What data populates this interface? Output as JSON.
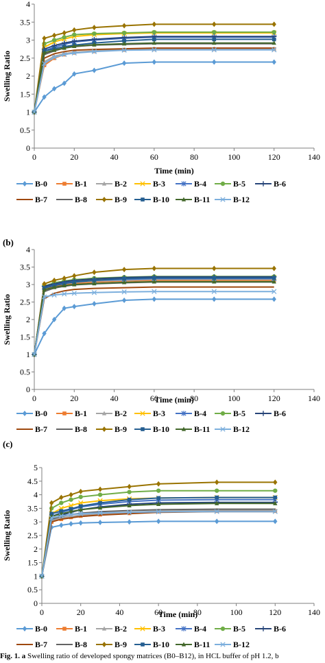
{
  "panel_labels": [
    "",
    "(b)",
    "(c)"
  ],
  "caption": {
    "prefix": "Fig. 1.",
    "letter": "a",
    "text": "Swelling ratio of developed spongy matrices (B0–B12), in HCL buffer of pH 1.2, b"
  },
  "colors": {
    "B-0": "#5b9bd5",
    "B-1": "#ed7d31",
    "B-2": "#a5a5a5",
    "B-3": "#ffc000",
    "B-4": "#4472c4",
    "B-5": "#70ad47",
    "B-6": "#264478",
    "B-7": "#9e480e",
    "B-8": "#636363",
    "B-9": "#997300",
    "B-10": "#255e91",
    "B-11": "#43682b",
    "B-12": "#7cafdd"
  },
  "markers": {
    "B-0": "diamond",
    "B-1": "square",
    "B-2": "triangle",
    "B-3": "x",
    "B-4": "star",
    "B-5": "circle",
    "B-6": "plus",
    "B-7": "dash",
    "B-8": "dash",
    "B-9": "diamond",
    "B-10": "square",
    "B-11": "triangle",
    "B-12": "x"
  },
  "chart_data": [
    {
      "type": "line",
      "panel": "a",
      "xlabel": "Time (min)",
      "ylabel": "Swelling Ratio",
      "xlim": [
        0,
        140
      ],
      "ylim": [
        0,
        4
      ],
      "xticks": [
        0,
        20,
        40,
        60,
        80,
        100,
        120,
        140
      ],
      "yticks": [
        0,
        0.5,
        1,
        1.5,
        2,
        2.5,
        3,
        3.5,
        4
      ],
      "grid": false,
      "legend_position": "bottom",
      "x": [
        0,
        5,
        10,
        15,
        20,
        30,
        45,
        60,
        90,
        120
      ],
      "series": [
        {
          "name": "B-0",
          "values": [
            1,
            1.42,
            1.65,
            1.8,
            2.06,
            2.16,
            2.36,
            2.39,
            2.39,
            2.39
          ]
        },
        {
          "name": "B-1",
          "values": [
            1,
            2.3,
            2.5,
            2.6,
            2.65,
            2.69,
            2.73,
            2.75,
            2.75,
            2.75
          ]
        },
        {
          "name": "B-2",
          "values": [
            1,
            2.4,
            2.55,
            2.62,
            2.66,
            2.7,
            2.74,
            2.76,
            2.76,
            2.76
          ]
        },
        {
          "name": "B-3",
          "values": [
            1,
            2.8,
            2.95,
            3.03,
            3.1,
            3.15,
            3.18,
            3.2,
            3.2,
            3.2
          ]
        },
        {
          "name": "B-4",
          "values": [
            1,
            2.7,
            2.8,
            2.88,
            2.95,
            3.0,
            3.05,
            3.08,
            3.08,
            3.08
          ]
        },
        {
          "name": "B-5",
          "values": [
            1,
            2.9,
            3.0,
            3.08,
            3.15,
            3.18,
            3.2,
            3.22,
            3.22,
            3.22
          ]
        },
        {
          "name": "B-6",
          "values": [
            1,
            2.75,
            2.85,
            2.92,
            2.97,
            3.02,
            3.07,
            3.1,
            3.1,
            3.1
          ]
        },
        {
          "name": "B-7",
          "values": [
            1,
            2.5,
            2.62,
            2.68,
            2.72,
            2.74,
            2.76,
            2.78,
            2.78,
            2.78
          ]
        },
        {
          "name": "B-8",
          "values": [
            1,
            2.6,
            2.7,
            2.78,
            2.82,
            2.86,
            2.88,
            2.9,
            2.9,
            2.9
          ]
        },
        {
          "name": "B-9",
          "values": [
            1,
            3.05,
            3.13,
            3.2,
            3.28,
            3.35,
            3.4,
            3.44,
            3.44,
            3.44
          ]
        },
        {
          "name": "B-10",
          "values": [
            1,
            2.7,
            2.76,
            2.82,
            2.86,
            2.92,
            2.98,
            3.02,
            3.02,
            3.02
          ]
        },
        {
          "name": "B-11",
          "values": [
            1,
            2.65,
            2.72,
            2.78,
            2.83,
            2.87,
            2.9,
            2.92,
            2.92,
            2.92
          ]
        },
        {
          "name": "B-12",
          "values": [
            1,
            2.35,
            2.52,
            2.6,
            2.64,
            2.68,
            2.72,
            2.73,
            2.73,
            2.73
          ]
        }
      ]
    },
    {
      "type": "line",
      "panel": "b",
      "xlabel": "Time (min)",
      "ylabel": "Swelling Ratio",
      "xlim": [
        0,
        140
      ],
      "ylim": [
        0,
        4
      ],
      "xticks": [
        0,
        20,
        40,
        60,
        80,
        100,
        120,
        140
      ],
      "yticks": [
        0,
        0.5,
        1,
        1.5,
        2,
        2.5,
        3,
        3.5,
        4
      ],
      "grid": false,
      "legend_position": "bottom",
      "x": [
        0,
        5,
        10,
        15,
        20,
        30,
        45,
        60,
        90,
        120
      ],
      "series": [
        {
          "name": "B-0",
          "values": [
            1,
            1.6,
            2.0,
            2.32,
            2.37,
            2.45,
            2.55,
            2.58,
            2.58,
            2.58
          ]
        },
        {
          "name": "B-1",
          "values": [
            1,
            2.85,
            2.95,
            3.0,
            3.03,
            3.07,
            3.1,
            3.12,
            3.12,
            3.12
          ]
        },
        {
          "name": "B-2",
          "values": [
            1,
            2.9,
            2.98,
            3.02,
            3.06,
            3.1,
            3.12,
            3.15,
            3.15,
            3.15
          ]
        },
        {
          "name": "B-3",
          "values": [
            1,
            2.95,
            3.02,
            3.06,
            3.1,
            3.14,
            3.18,
            3.2,
            3.2,
            3.2
          ]
        },
        {
          "name": "B-4",
          "values": [
            1,
            2.92,
            3.0,
            3.05,
            3.08,
            3.12,
            3.15,
            3.17,
            3.17,
            3.17
          ]
        },
        {
          "name": "B-5",
          "values": [
            1,
            2.95,
            3.05,
            3.1,
            3.14,
            3.18,
            3.21,
            3.23,
            3.23,
            3.23
          ]
        },
        {
          "name": "B-6",
          "values": [
            1,
            2.95,
            3.02,
            3.08,
            3.12,
            3.16,
            3.2,
            3.22,
            3.22,
            3.22
          ]
        },
        {
          "name": "B-7",
          "values": [
            1,
            2.6,
            2.75,
            2.82,
            2.86,
            2.89,
            2.91,
            2.93,
            2.93,
            2.93
          ]
        },
        {
          "name": "B-8",
          "values": [
            1,
            2.8,
            2.9,
            2.95,
            2.99,
            3.02,
            3.05,
            3.07,
            3.07,
            3.07
          ]
        },
        {
          "name": "B-9",
          "values": [
            1,
            3.02,
            3.12,
            3.18,
            3.25,
            3.35,
            3.43,
            3.46,
            3.46,
            3.46
          ]
        },
        {
          "name": "B-10",
          "values": [
            1,
            2.9,
            2.97,
            3.03,
            3.07,
            3.12,
            3.17,
            3.19,
            3.19,
            3.19
          ]
        },
        {
          "name": "B-11",
          "values": [
            1,
            2.85,
            2.92,
            2.97,
            3.0,
            3.03,
            3.06,
            3.08,
            3.08,
            3.08
          ]
        },
        {
          "name": "B-12",
          "values": [
            1,
            2.65,
            2.7,
            2.73,
            2.75,
            2.77,
            2.79,
            2.8,
            2.8,
            2.8
          ]
        }
      ]
    },
    {
      "type": "line",
      "panel": "c",
      "xlabel": "Time (min)",
      "ylabel": "Swelling Ratio",
      "xlim": [
        0,
        140
      ],
      "ylim": [
        0,
        5
      ],
      "xticks": [
        0,
        20,
        40,
        60,
        80,
        100,
        120,
        140
      ],
      "yticks": [
        0,
        0.5,
        1,
        1.5,
        2,
        2.5,
        3,
        3.5,
        4,
        4.5,
        5
      ],
      "grid": false,
      "legend_position": "bottom",
      "x": [
        0,
        5,
        10,
        15,
        20,
        30,
        45,
        60,
        90,
        120
      ],
      "series": [
        {
          "name": "B-0",
          "values": [
            1,
            2.8,
            2.88,
            2.93,
            2.96,
            2.98,
            3.0,
            3.02,
            3.02,
            3.02
          ]
        },
        {
          "name": "B-1",
          "values": [
            1,
            3.0,
            3.1,
            3.17,
            3.22,
            3.27,
            3.32,
            3.38,
            3.4,
            3.4
          ]
        },
        {
          "name": "B-2",
          "values": [
            1,
            3.05,
            3.15,
            3.2,
            3.25,
            3.3,
            3.35,
            3.4,
            3.43,
            3.43
          ]
        },
        {
          "name": "B-3",
          "values": [
            1,
            3.3,
            3.5,
            3.6,
            3.7,
            3.78,
            3.85,
            3.88,
            3.9,
            3.9
          ]
        },
        {
          "name": "B-4",
          "values": [
            1,
            3.2,
            3.35,
            3.45,
            3.55,
            3.65,
            3.75,
            3.8,
            3.82,
            3.82
          ]
        },
        {
          "name": "B-5",
          "values": [
            1,
            3.5,
            3.7,
            3.82,
            3.92,
            4.0,
            4.1,
            4.15,
            4.15,
            4.15
          ]
        },
        {
          "name": "B-6",
          "values": [
            1,
            3.1,
            3.25,
            3.35,
            3.45,
            3.55,
            3.65,
            3.7,
            3.72,
            3.72
          ]
        },
        {
          "name": "B-7",
          "values": [
            1,
            3.0,
            3.1,
            3.15,
            3.2,
            3.25,
            3.3,
            3.35,
            3.38,
            3.38
          ]
        },
        {
          "name": "B-8",
          "values": [
            1,
            3.1,
            3.2,
            3.27,
            3.32,
            3.38,
            3.42,
            3.45,
            3.47,
            3.47
          ]
        },
        {
          "name": "B-9",
          "values": [
            1,
            3.7,
            3.9,
            4.0,
            4.12,
            4.2,
            4.3,
            4.4,
            4.46,
            4.46
          ]
        },
        {
          "name": "B-10",
          "values": [
            1,
            3.3,
            3.4,
            3.48,
            3.58,
            3.7,
            3.82,
            3.88,
            3.9,
            3.9
          ]
        },
        {
          "name": "B-11",
          "values": [
            1,
            3.2,
            3.3,
            3.38,
            3.45,
            3.52,
            3.6,
            3.65,
            3.68,
            3.68
          ]
        },
        {
          "name": "B-12",
          "values": [
            1,
            3.15,
            3.22,
            3.27,
            3.3,
            3.33,
            3.35,
            3.37,
            3.38,
            3.38
          ]
        }
      ]
    }
  ]
}
